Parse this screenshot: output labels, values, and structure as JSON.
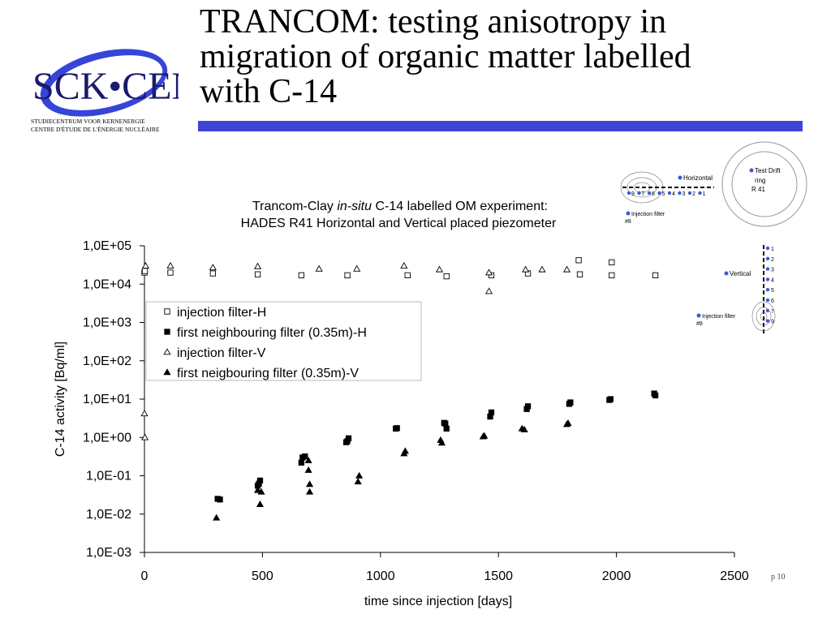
{
  "logo": {
    "name": "SCK•CEN",
    "line1": "STUDIECENTRUM VOOR KERNENERGIE",
    "line2": "CENTRE D'ÉTUDE DE L'ÉNERGIE NUCLÉAIRE"
  },
  "slide": {
    "title": "TRANCOM: testing anisotropy in\nmigration of organic matter labelled\nwith C-14",
    "page_number": "p 10"
  },
  "colors": {
    "title_rule": "#3e45d6",
    "marker": "#000000",
    "inset_dots": "#3a5ad8"
  },
  "chart_data": {
    "type": "scatter",
    "title_line1_prefix": "Trancom-Clay ",
    "title_line1_italic": "in-situ",
    "title_line1_suffix": " C-14 labelled OM experiment:",
    "title_line2": "HADES R41 Horizontal and Vertical placed piezometer",
    "xlabel": "time since injection [days]",
    "ylabel": "C-14 activity [Bq/ml]",
    "xlim": [
      0,
      2500
    ],
    "ylim": [
      0.001,
      100000
    ],
    "y_scale": "log",
    "x_ticks": [
      "0",
      "500",
      "1000",
      "1500",
      "2000",
      "2500"
    ],
    "y_ticks": [
      "1,0E+05",
      "1,0E+04",
      "1,0E+03",
      "1,0E+02",
      "1,0E+01",
      "1,0E+00",
      "1,0E-01",
      "1,0E-02",
      "1,0E-03"
    ],
    "grid": false,
    "legend_position": "upper-left",
    "series": [
      {
        "name": "injection filter-H",
        "marker": "open-square",
        "points": [
          [
            0,
            20000
          ],
          [
            2,
            22000
          ],
          [
            110,
            20000
          ],
          [
            290,
            19000
          ],
          [
            480,
            18000
          ],
          [
            665,
            17000
          ],
          [
            860,
            17000
          ],
          [
            1115,
            17000
          ],
          [
            1280,
            16000
          ],
          [
            1470,
            17000
          ],
          [
            1625,
            19000
          ],
          [
            1845,
            18000
          ],
          [
            1980,
            17000
          ],
          [
            2165,
            17000
          ],
          [
            1840,
            42000
          ],
          [
            1980,
            37000
          ]
        ]
      },
      {
        "name": "first neighbouring filter (0.35m)-H",
        "marker": "filled-square",
        "points": [
          [
            310,
            0.025
          ],
          [
            320,
            0.024
          ],
          [
            480,
            0.055
          ],
          [
            485,
            0.062
          ],
          [
            490,
            0.075
          ],
          [
            665,
            0.22
          ],
          [
            670,
            0.3
          ],
          [
            680,
            0.32
          ],
          [
            855,
            0.75
          ],
          [
            860,
            0.8
          ],
          [
            865,
            0.95
          ],
          [
            1065,
            1.7
          ],
          [
            1070,
            1.75
          ],
          [
            1270,
            2.4
          ],
          [
            1275,
            2.3
          ],
          [
            1280,
            1.7
          ],
          [
            1465,
            3.5
          ],
          [
            1470,
            4.5
          ],
          [
            1620,
            5.5
          ],
          [
            1625,
            6.5
          ],
          [
            1800,
            7.5
          ],
          [
            1805,
            8.2
          ],
          [
            1970,
            9.5
          ],
          [
            1975,
            10.0
          ],
          [
            2160,
            14.0
          ],
          [
            2165,
            12.5
          ]
        ]
      },
      {
        "name": "injection filter-V",
        "marker": "open-triangle",
        "points": [
          [
            0,
            4.2
          ],
          [
            2,
            1.0
          ],
          [
            5,
            30000
          ],
          [
            110,
            30000
          ],
          [
            290,
            27000
          ],
          [
            480,
            29000
          ],
          [
            740,
            25000
          ],
          [
            900,
            25000
          ],
          [
            1100,
            30000
          ],
          [
            1250,
            24000
          ],
          [
            1460,
            20000
          ],
          [
            1460,
            6500
          ],
          [
            1615,
            24000
          ],
          [
            1685,
            24000
          ],
          [
            1790,
            24000
          ]
        ]
      },
      {
        "name": "first neigbouring filter (0.35m)-V",
        "marker": "filled-triangle",
        "points": [
          [
            305,
            0.008
          ],
          [
            480,
            0.042
          ],
          [
            490,
            0.018
          ],
          [
            495,
            0.038
          ],
          [
            695,
            0.25
          ],
          [
            695,
            0.14
          ],
          [
            700,
            0.06
          ],
          [
            700,
            0.038
          ],
          [
            905,
            0.07
          ],
          [
            910,
            0.1
          ],
          [
            1100,
            0.38
          ],
          [
            1105,
            0.44
          ],
          [
            1255,
            0.85
          ],
          [
            1260,
            0.72
          ],
          [
            1435,
            1.05
          ],
          [
            1440,
            1.1
          ],
          [
            1600,
            1.7
          ],
          [
            1610,
            1.6
          ],
          [
            1790,
            2.2
          ],
          [
            1795,
            2.35
          ]
        ]
      }
    ]
  },
  "inset": {
    "horizontal_label": "Horizontal",
    "vertical_label": "Vertical",
    "test_drift_label": "Test Drift",
    "r41_label": "R 41",
    "ring_label": "ring",
    "injection_filter_label": "Injection filter",
    "injection_filter_number": "#8",
    "h_filters": [
      "9",
      "7",
      "6",
      "5",
      "4",
      "3",
      "2",
      "1"
    ],
    "v_filters": [
      "1",
      "2",
      "3",
      "4",
      "5",
      "6",
      "7",
      "9"
    ]
  }
}
